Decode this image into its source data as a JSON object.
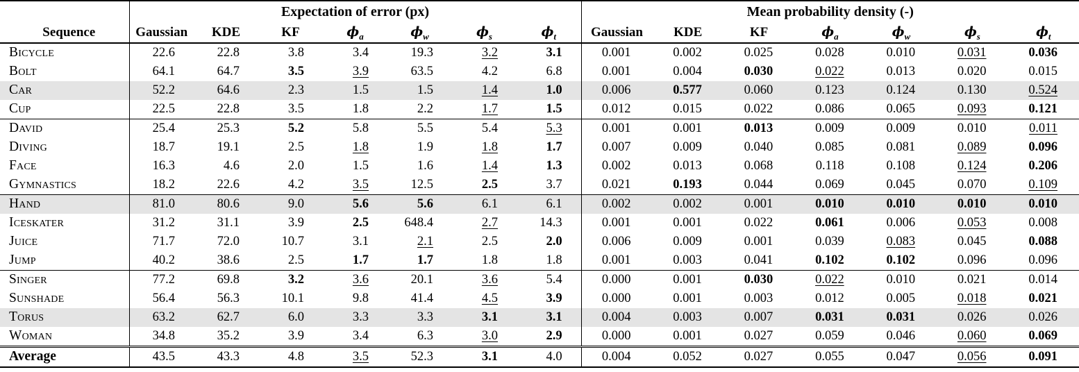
{
  "table": {
    "row_header": "Sequence",
    "shaded_row_color": "#e4e4e4",
    "text_color": "#000000",
    "groups": [
      {
        "label": "Expectation of error (px)",
        "columns": [
          {
            "label": "Gaussian"
          },
          {
            "label": "KDE"
          },
          {
            "label": "KF"
          },
          {
            "label": "ϕ",
            "sub": "a"
          },
          {
            "label": "ϕ",
            "sub": "w"
          },
          {
            "label": "ϕ",
            "sub": "s"
          },
          {
            "label": "ϕ",
            "sub": "t"
          }
        ]
      },
      {
        "label": "Mean probability density (-)",
        "columns": [
          {
            "label": "Gaussian"
          },
          {
            "label": "KDE"
          },
          {
            "label": "KF"
          },
          {
            "label": "ϕ",
            "sub": "a"
          },
          {
            "label": "ϕ",
            "sub": "w"
          },
          {
            "label": "ϕ",
            "sub": "s"
          },
          {
            "label": "ϕ",
            "sub": "t"
          }
        ]
      }
    ],
    "rows": [
      {
        "name": "Bicycle",
        "err": [
          "22.6",
          "22.8",
          "3.8",
          "3.4",
          "19.3",
          "_3.2",
          "*3.1"
        ],
        "mpd": [
          "0.001",
          "0.002",
          "0.025",
          "0.028",
          "0.010",
          "_0.031",
          "*0.036"
        ]
      },
      {
        "name": "Bolt",
        "err": [
          "64.1",
          "64.7",
          "*3.5",
          "_3.9",
          "63.5",
          "4.2",
          "6.8"
        ],
        "mpd": [
          "0.001",
          "0.004",
          "*0.030",
          "_0.022",
          "0.013",
          "0.020",
          "0.015"
        ]
      },
      {
        "name": "Car",
        "shaded": true,
        "err": [
          "52.2",
          "64.6",
          "2.3",
          "1.5",
          "1.5",
          "_1.4",
          "*1.0"
        ],
        "mpd": [
          "0.006",
          "*0.577",
          "0.060",
          "0.123",
          "0.124",
          "0.130",
          "_0.524"
        ]
      },
      {
        "name": "Cup",
        "err": [
          "22.5",
          "22.8",
          "3.5",
          "1.8",
          "2.2",
          "_1.7",
          "*1.5"
        ],
        "mpd": [
          "0.012",
          "0.015",
          "0.022",
          "0.086",
          "0.065",
          "_0.093",
          "*0.121"
        ]
      },
      {
        "name": "David",
        "sep": true,
        "err": [
          "25.4",
          "25.3",
          "*5.2",
          "5.8",
          "5.5",
          "5.4",
          "_5.3"
        ],
        "mpd": [
          "0.001",
          "0.001",
          "*0.013",
          "0.009",
          "0.009",
          "0.010",
          "_0.011"
        ]
      },
      {
        "name": "Diving",
        "err": [
          "18.7",
          "19.1",
          "2.5",
          "_1.8",
          "1.9",
          "_1.8",
          "*1.7"
        ],
        "mpd": [
          "0.007",
          "0.009",
          "0.040",
          "0.085",
          "0.081",
          "_0.089",
          "*0.096"
        ]
      },
      {
        "name": "Face",
        "err": [
          "16.3",
          "4.6",
          "2.0",
          "1.5",
          "1.6",
          "_1.4",
          "*1.3"
        ],
        "mpd": [
          "0.002",
          "0.013",
          "0.068",
          "0.118",
          "0.108",
          "_0.124",
          "*0.206"
        ]
      },
      {
        "name": "Gymnastics",
        "err": [
          "18.2",
          "22.6",
          "4.2",
          "_3.5",
          "12.5",
          "*2.5",
          "3.7"
        ],
        "mpd": [
          "0.021",
          "*0.193",
          "0.044",
          "0.069",
          "0.045",
          "0.070",
          "_0.109"
        ]
      },
      {
        "name": "Hand",
        "sep": true,
        "shaded": true,
        "err": [
          "81.0",
          "80.6",
          "9.0",
          "*5.6",
          "*5.6",
          "6.1",
          "6.1"
        ],
        "mpd": [
          "0.002",
          "0.002",
          "0.001",
          "*0.010",
          "*0.010",
          "*0.010",
          "*0.010"
        ]
      },
      {
        "name": "Iceskater",
        "err": [
          "31.2",
          "31.1",
          "3.9",
          "*2.5",
          "648.4",
          "_2.7",
          "14.3"
        ],
        "mpd": [
          "0.001",
          "0.001",
          "0.022",
          "*0.061",
          "0.006",
          "_0.053",
          "0.008"
        ]
      },
      {
        "name": "Juice",
        "err": [
          "71.7",
          "72.0",
          "10.7",
          "3.1",
          "_2.1",
          "2.5",
          "*2.0"
        ],
        "mpd": [
          "0.006",
          "0.009",
          "0.001",
          "0.039",
          "_0.083",
          "0.045",
          "*0.088"
        ]
      },
      {
        "name": "Jump",
        "err": [
          "40.2",
          "38.6",
          "2.5",
          "*1.7",
          "*1.7",
          "1.8",
          "1.8"
        ],
        "mpd": [
          "0.001",
          "0.003",
          "0.041",
          "*0.102",
          "*0.102",
          "0.096",
          "0.096"
        ]
      },
      {
        "name": "Singer",
        "sep": true,
        "err": [
          "77.2",
          "69.8",
          "*3.2",
          "_3.6",
          "20.1",
          "_3.6",
          "5.4"
        ],
        "mpd": [
          "0.000",
          "0.001",
          "*0.030",
          "_0.022",
          "0.010",
          "0.021",
          "0.014"
        ]
      },
      {
        "name": "Sunshade",
        "err": [
          "56.4",
          "56.3",
          "10.1",
          "9.8",
          "41.4",
          "_4.5",
          "*3.9"
        ],
        "mpd": [
          "0.000",
          "0.001",
          "0.003",
          "0.012",
          "0.005",
          "_0.018",
          "*0.021"
        ]
      },
      {
        "name": "Torus",
        "shaded": true,
        "err": [
          "63.2",
          "62.7",
          "6.0",
          "3.3",
          "3.3",
          "*3.1",
          "*3.1"
        ],
        "mpd": [
          "0.004",
          "0.003",
          "0.007",
          "*0.031",
          "*0.031",
          "0.026",
          "0.026"
        ]
      },
      {
        "name": "Woman",
        "err": [
          "34.8",
          "35.2",
          "3.9",
          "3.4",
          "6.3",
          "_3.0",
          "*2.9"
        ],
        "mpd": [
          "0.000",
          "0.001",
          "0.027",
          "0.059",
          "0.046",
          "_0.060",
          "*0.069"
        ]
      },
      {
        "name": "Average",
        "sep2": true,
        "bold_label": true,
        "plain_case": true,
        "err": [
          "43.5",
          "43.3",
          "4.8",
          "_3.5",
          "52.3",
          "*3.1",
          "4.0"
        ],
        "mpd": [
          "0.004",
          "0.052",
          "0.027",
          "0.055",
          "0.047",
          "_0.056",
          "*0.091"
        ]
      }
    ]
  }
}
